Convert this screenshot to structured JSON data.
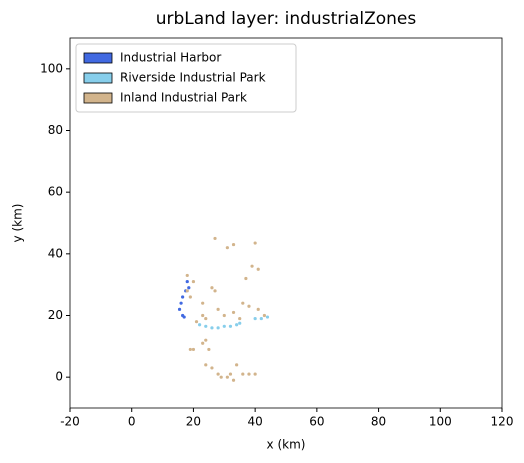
{
  "chart_data": {
    "type": "scatter",
    "title": "urbLand layer: industrialZones",
    "xlabel": "x (km)",
    "ylabel": "y (km)",
    "xlim": [
      -20,
      120
    ],
    "ylim": [
      -10,
      110
    ],
    "xticks": [
      -20,
      0,
      20,
      40,
      60,
      80,
      100,
      120
    ],
    "yticks": [
      0,
      20,
      40,
      60,
      80,
      100
    ],
    "legend": "upper left",
    "series": [
      {
        "name": "Industrial Harbor",
        "color": "#4169e1",
        "x": [
          18,
          17.5,
          16.5,
          16,
          15.5,
          16.5,
          17,
          18.5
        ],
        "y": [
          31,
          28,
          26,
          24,
          22,
          20,
          19.5,
          29
        ]
      },
      {
        "name": "Riverside Industrial Park",
        "color": "#87ceeb",
        "x": [
          22,
          24,
          26,
          28,
          30,
          32,
          34,
          35,
          40,
          42,
          44
        ],
        "y": [
          17,
          16.5,
          16,
          16,
          16.5,
          16.5,
          17,
          17.5,
          19,
          19,
          19.5
        ]
      },
      {
        "name": "Inland Industrial Park",
        "color": "#d2b48c",
        "x": [
          27,
          31,
          33,
          40,
          39,
          41,
          37,
          18,
          20,
          18,
          19,
          23,
          26,
          27,
          23,
          21,
          24,
          28,
          30,
          33,
          36,
          38,
          41,
          43,
          35,
          20,
          23,
          24,
          25,
          24,
          26,
          28,
          29,
          31,
          32,
          34,
          36,
          38,
          40,
          33,
          19
        ],
        "y": [
          45,
          42,
          43,
          43.5,
          36,
          35,
          32,
          33,
          31,
          28,
          26,
          24,
          29,
          28,
          20,
          18,
          19,
          22,
          20,
          21,
          24,
          23,
          22,
          20,
          19,
          9,
          11,
          12,
          9,
          4,
          3,
          1,
          0,
          0,
          1,
          4,
          1,
          1,
          1,
          -1,
          9
        ]
      }
    ]
  }
}
